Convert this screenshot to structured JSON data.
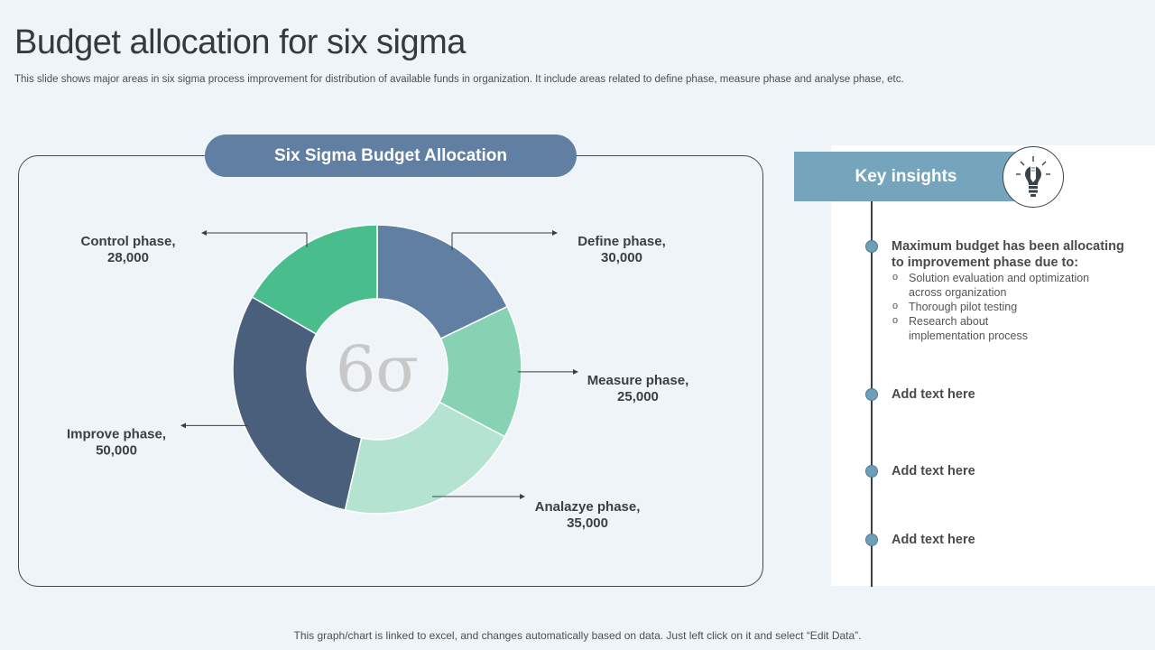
{
  "page": {
    "title": "Budget allocation for six sigma",
    "subtitle": "This slide shows major areas in six sigma process improvement for distribution of available funds in organization. It include areas related to define phase, measure phase and analyse phase, etc.",
    "footer": "This graph/chart is linked to excel, and changes automatically based on data. Just left click on it and select “Edit Data”."
  },
  "chart_data": {
    "type": "pie",
    "variant": "donut",
    "title": "Six Sigma Budget Allocation",
    "center_symbol": "6σ",
    "categories": [
      "Define phase",
      "Measure phase",
      "Analazye phase",
      "Improve phase",
      "Control phase"
    ],
    "values": [
      30000,
      25000,
      35000,
      50000,
      28000
    ],
    "value_labels": [
      "30,000",
      "25,000",
      "35,000",
      "50,000",
      "28,000"
    ],
    "colors": [
      "#617fa2",
      "#86d2b2",
      "#b5e3d2",
      "#4a5f7c",
      "#4abd8c"
    ],
    "label_texts": [
      "Define phase,",
      "Measure phase,",
      "Analazye phase,",
      "Improve phase,",
      "Control phase,"
    ]
  },
  "insights": {
    "header": "Key insights",
    "icon": "lightbulb-pencil-icon",
    "items": [
      {
        "heading": "Maximum budget has been allocating to improvement phase due to:",
        "heading_line1": "Maximum budget has been allocating",
        "heading_line2": "to improvement phase due to:",
        "bullets": [
          "Solution evaluation and optimization across organization",
          "Thorough pilot testing",
          "Research about implementation process"
        ]
      },
      {
        "heading": "Add text here"
      },
      {
        "heading": "Add text here"
      },
      {
        "heading": "Add text here"
      }
    ]
  },
  "colors": {
    "background": "#eef4f7",
    "chart_header": "#617fa2",
    "insights_header": "#74a5bd",
    "timeline_dot": "#6f9fb7"
  }
}
